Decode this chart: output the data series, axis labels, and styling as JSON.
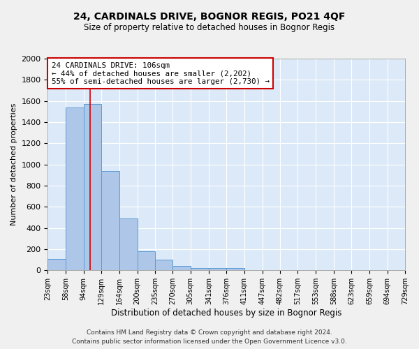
{
  "title1": "24, CARDINALS DRIVE, BOGNOR REGIS, PO21 4QF",
  "title2": "Size of property relative to detached houses in Bognor Regis",
  "xlabel": "Distribution of detached houses by size in Bognor Regis",
  "ylabel": "Number of detached properties",
  "footnote1": "Contains HM Land Registry data © Crown copyright and database right 2024.",
  "footnote2": "Contains public sector information licensed under the Open Government Licence v3.0.",
  "bin_edges": [
    23,
    58,
    94,
    129,
    164,
    200,
    235,
    270,
    305,
    341,
    376,
    411,
    447,
    482,
    517,
    553,
    588,
    623,
    659,
    694,
    729
  ],
  "bar_heights": [
    110,
    1540,
    1570,
    940,
    490,
    180,
    100,
    40,
    25,
    20,
    20,
    0,
    0,
    0,
    0,
    0,
    0,
    0,
    0,
    0
  ],
  "bar_color": "#aec6e8",
  "bar_edge_color": "#5b9bd5",
  "bg_color": "#dce9f8",
  "grid_color": "#ffffff",
  "fig_bg_color": "#f0f0f0",
  "red_line_x": 106,
  "annotation_text_line1": "24 CARDINALS DRIVE: 106sqm",
  "annotation_text_line2": "← 44% of detached houses are smaller (2,202)",
  "annotation_text_line3": "55% of semi-detached houses are larger (2,730) →",
  "annotation_box_color": "#ffffff",
  "annotation_box_edge": "#cc0000",
  "annotation_text_color": "#000000",
  "red_line_color": "#cc0000",
  "ylim": [
    0,
    2000
  ],
  "yticks": [
    0,
    200,
    400,
    600,
    800,
    1000,
    1200,
    1400,
    1600,
    1800,
    2000
  ]
}
